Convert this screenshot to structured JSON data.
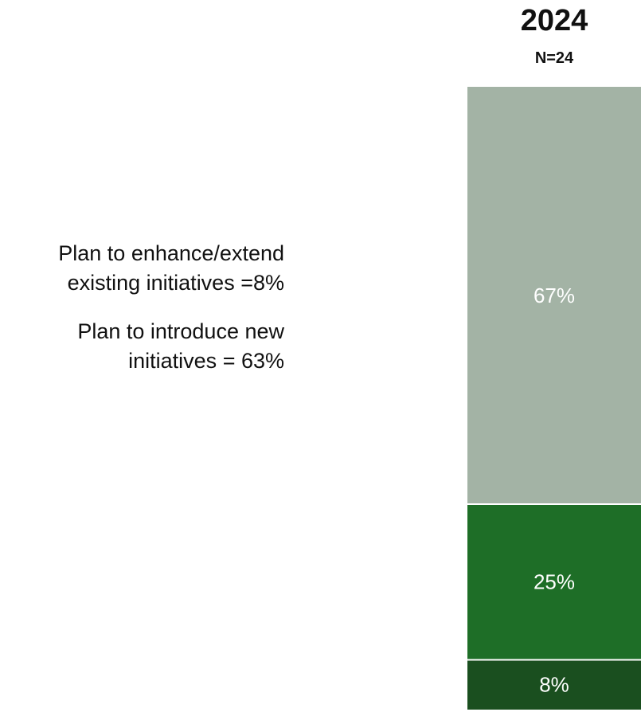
{
  "chart_data": {
    "type": "bar",
    "stacked": true,
    "title": "2024",
    "subtitle": "N=24",
    "categories": [
      "2024"
    ],
    "series": [
      {
        "values": [
          8
        ],
        "label": "8%",
        "color": "#1a4f1f"
      },
      {
        "values": [
          25
        ],
        "label": "25%",
        "color": "#1e6e27"
      },
      {
        "values": [
          67
        ],
        "label": "67%",
        "color": "#a3b3a5"
      }
    ],
    "ylim": [
      0,
      100
    ],
    "grid": false,
    "annotations": [
      "Plan to enhance/extend existing initiatives =8%",
      "Plan to introduce new initiatives = 63%"
    ],
    "segment_divider_color": "#ffffff"
  }
}
